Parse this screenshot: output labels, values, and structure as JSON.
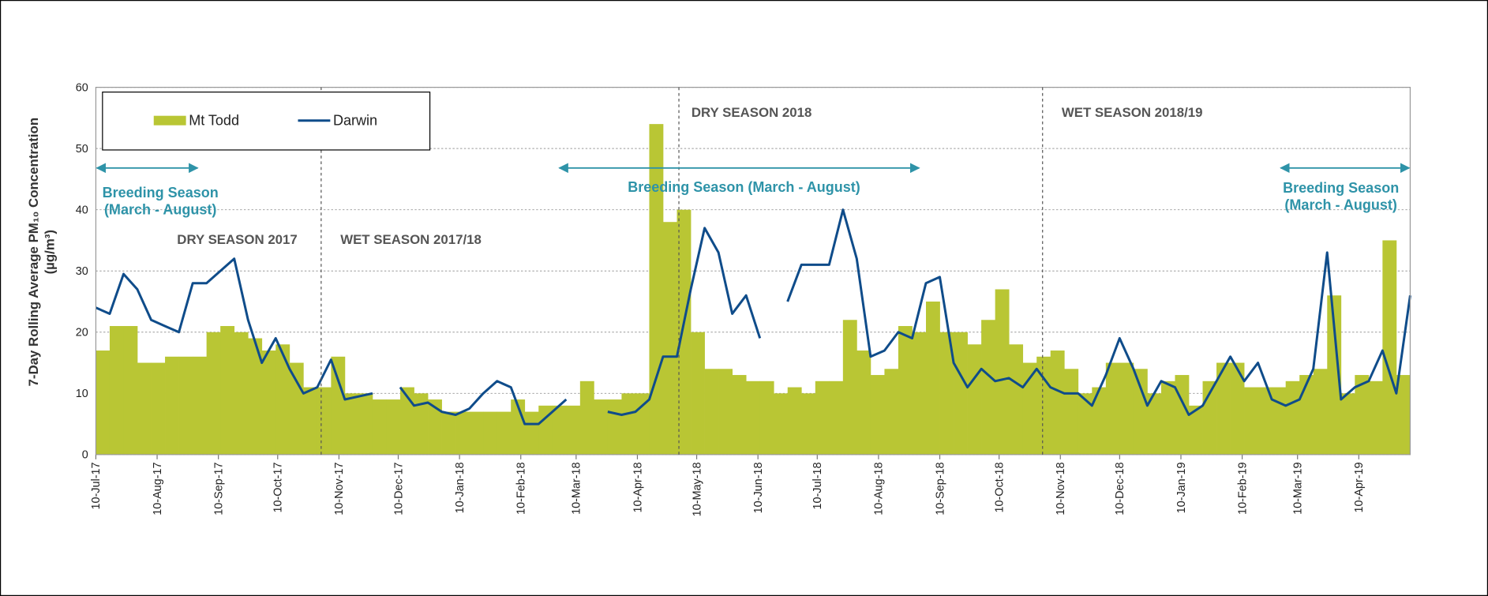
{
  "chart_data": {
    "type": "bar-line",
    "y_label": [
      "7-Day Rolling Average PM₁₀ Concentration",
      "(µg/m³)"
    ],
    "x": [
      "2017-07-10",
      "2017-07-17",
      "2017-07-24",
      "2017-07-31",
      "2017-08-07",
      "2017-08-14",
      "2017-08-21",
      "2017-08-28",
      "2017-09-04",
      "2017-09-11",
      "2017-09-18",
      "2017-09-25",
      "2017-10-02",
      "2017-10-09",
      "2017-10-16",
      "2017-10-23",
      "2017-10-30",
      "2017-11-06",
      "2017-11-13",
      "2017-11-20",
      "2017-11-27",
      "2017-12-04",
      "2017-12-11",
      "2017-12-18",
      "2017-12-25",
      "2018-01-01",
      "2018-01-08",
      "2018-01-15",
      "2018-01-22",
      "2018-01-29",
      "2018-02-05",
      "2018-02-12",
      "2018-02-19",
      "2018-02-26",
      "2018-03-05",
      "2018-03-12",
      "2018-03-19",
      "2018-03-26",
      "2018-04-02",
      "2018-04-09",
      "2018-04-16",
      "2018-04-23",
      "2018-04-30",
      "2018-05-07",
      "2018-05-14",
      "2018-05-21",
      "2018-05-28",
      "2018-06-04",
      "2018-06-11",
      "2018-06-18",
      "2018-06-25",
      "2018-07-02",
      "2018-07-09",
      "2018-07-16",
      "2018-07-23",
      "2018-07-30",
      "2018-08-06",
      "2018-08-13",
      "2018-08-20",
      "2018-08-27",
      "2018-09-03",
      "2018-09-10",
      "2018-09-17",
      "2018-09-24",
      "2018-10-01",
      "2018-10-08",
      "2018-10-15",
      "2018-10-22",
      "2018-10-29",
      "2018-11-05",
      "2018-11-12",
      "2018-11-19",
      "2018-11-26",
      "2018-12-03",
      "2018-12-10",
      "2018-12-17",
      "2018-12-24",
      "2018-12-31",
      "2019-01-07",
      "2019-01-14",
      "2019-01-21",
      "2019-01-28",
      "2019-02-04",
      "2019-02-11",
      "2019-02-18",
      "2019-02-25",
      "2019-03-04",
      "2019-03-11",
      "2019-03-18",
      "2019-03-25",
      "2019-04-01",
      "2019-04-08",
      "2019-04-15",
      "2019-04-22",
      "2019-04-29",
      "2019-05-06"
    ],
    "series": [
      {
        "name": "Mt Todd",
        "type": "bar",
        "color": "#b9c634",
        "values": [
          17,
          21,
          21,
          15,
          15,
          16,
          16,
          16,
          20,
          21,
          20,
          19,
          17,
          18,
          15,
          11,
          11,
          16,
          10,
          10,
          9,
          9,
          11,
          10,
          9,
          7,
          7,
          7,
          7,
          7,
          9,
          7,
          8,
          8,
          8,
          12,
          9,
          9,
          10,
          10,
          54,
          38,
          40,
          20,
          14,
          14,
          13,
          12,
          12,
          10,
          11,
          10,
          12,
          12,
          22,
          17,
          13,
          14,
          21,
          20,
          25,
          20,
          20,
          18,
          22,
          27,
          18,
          15,
          16,
          17,
          14,
          10,
          11,
          15,
          15,
          14,
          10,
          12,
          13,
          8,
          12,
          15,
          15,
          11,
          11,
          11,
          12,
          13,
          14,
          26,
          10,
          13,
          12,
          35,
          13,
          null
        ]
      },
      {
        "name": "Darwin",
        "type": "line",
        "color": "#0f4c8a",
        "values": [
          24,
          23,
          29.5,
          27,
          22,
          21,
          20,
          28,
          28,
          30,
          32,
          22,
          15,
          19,
          14,
          10,
          11,
          15.5,
          9,
          9.5,
          10,
          null,
          11,
          8,
          8.5,
          7,
          6.5,
          7.5,
          10,
          12,
          11,
          5,
          5,
          7,
          9,
          null,
          null,
          7,
          6.5,
          7,
          9,
          16,
          16,
          27,
          37,
          33,
          23,
          26,
          19,
          null,
          25,
          31,
          31,
          31,
          40,
          32,
          16,
          17,
          20,
          19,
          28,
          29,
          15,
          11,
          14,
          12,
          12.5,
          11,
          14,
          11,
          10,
          10,
          8,
          13,
          19,
          14,
          8,
          12,
          11,
          6.5,
          8,
          12,
          16,
          12,
          15,
          9,
          8,
          9,
          14,
          33,
          9,
          11,
          12,
          17,
          10,
          26
        ]
      }
    ],
    "xlim": [
      "2017-07-10",
      "2019-05-06"
    ],
    "xticks": [
      {
        "value": "2017-07-10",
        "label": "10-Jul-17"
      },
      {
        "value": "2017-08-10",
        "label": "10-Aug-17"
      },
      {
        "value": "2017-09-10",
        "label": "10-Sep-17"
      },
      {
        "value": "2017-10-10",
        "label": "10-Oct-17"
      },
      {
        "value": "2017-11-10",
        "label": "10-Nov-17"
      },
      {
        "value": "2017-12-10",
        "label": "10-Dec-17"
      },
      {
        "value": "2018-01-10",
        "label": "10-Jan-18"
      },
      {
        "value": "2018-02-10",
        "label": "10-Feb-18"
      },
      {
        "value": "2018-03-10",
        "label": "10-Mar-18"
      },
      {
        "value": "2018-04-10",
        "label": "10-Apr-18"
      },
      {
        "value": "2018-05-10",
        "label": "10-May-18"
      },
      {
        "value": "2018-06-10",
        "label": "10-Jun-18"
      },
      {
        "value": "2018-07-10",
        "label": "10-Jul-18"
      },
      {
        "value": "2018-08-10",
        "label": "10-Aug-18"
      },
      {
        "value": "2018-09-10",
        "label": "10-Sep-18"
      },
      {
        "value": "2018-10-10",
        "label": "10-Oct-18"
      },
      {
        "value": "2018-11-10",
        "label": "10-Nov-18"
      },
      {
        "value": "2018-12-10",
        "label": "10-Dec-18"
      },
      {
        "value": "2019-01-10",
        "label": "10-Jan-19"
      },
      {
        "value": "2019-02-10",
        "label": "10-Feb-19"
      },
      {
        "value": "2019-03-10",
        "label": "10-Mar-19"
      },
      {
        "value": "2019-04-10",
        "label": "10-Apr-19"
      }
    ],
    "ylim": [
      0,
      60
    ],
    "yticks": [
      0,
      10,
      20,
      30,
      40,
      50,
      60
    ],
    "grid": true,
    "legend": "upper left",
    "season_dividers": [
      "2017-11-01",
      "2018-05-01",
      "2018-11-01"
    ],
    "season_labels": [
      "DRY SEASON 2017",
      "WET SEASON 2017/18",
      "DRY SEASON 2018",
      "WET SEASON 2018/19"
    ],
    "breeding_seasons": [
      {
        "start": "2017-07-10",
        "end": "2017-08-31",
        "label": [
          "Breeding Season",
          "(March - August)"
        ]
      },
      {
        "start": "2018-03-01",
        "end": "2018-08-31",
        "label": [
          "Breeding Season (March - August)"
        ]
      },
      {
        "start": "2019-03-01",
        "end": "2019-05-06",
        "label": [
          "Breeding Season",
          "(March - August)"
        ]
      }
    ]
  }
}
